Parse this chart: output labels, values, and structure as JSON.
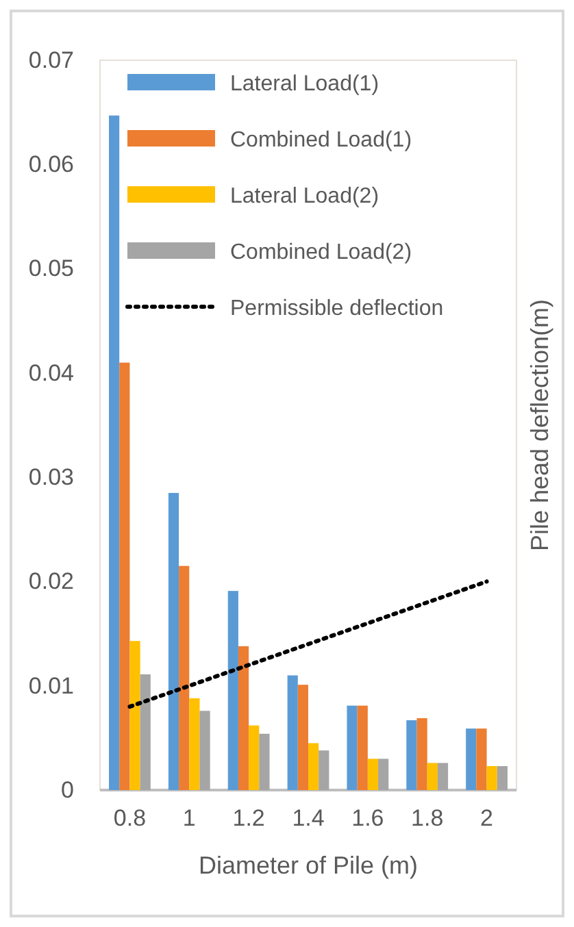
{
  "chart_data": {
    "type": "bar",
    "xlabel": "Diameter of Pile (m)",
    "ylabel": "Pile head deflection(m)",
    "categories": [
      "0.8",
      "1",
      "1.2",
      "1.4",
      "1.6",
      "1.8",
      "2"
    ],
    "series": [
      {
        "name": "Lateral Load(1)",
        "color": "#5b9bd5",
        "values": [
          0.0647,
          0.0285,
          0.0191,
          0.011,
          0.0081,
          0.0067,
          0.0059
        ]
      },
      {
        "name": "Combined Load(1)",
        "color": "#ed7d31",
        "values": [
          0.041,
          0.0215,
          0.0138,
          0.0101,
          0.0081,
          0.0069,
          0.0059
        ]
      },
      {
        "name": "Lateral Load(2)",
        "color": "#ffc000",
        "values": [
          0.0143,
          0.0088,
          0.0062,
          0.0045,
          0.003,
          0.0026,
          0.0023
        ]
      },
      {
        "name": "Combined Load(2)",
        "color": "#a5a5a5",
        "values": [
          0.0111,
          0.0076,
          0.0054,
          0.0038,
          0.003,
          0.0026,
          0.0023
        ]
      },
      {
        "name": "Permissible deflection",
        "type": "line",
        "color": "#000000",
        "line_style": "dotted",
        "values": [
          0.008,
          0.01,
          0.012,
          0.014,
          0.016,
          0.018,
          0.02
        ]
      }
    ],
    "ylim": [
      0,
      0.07
    ],
    "yticks": [
      0,
      0.01,
      0.02,
      0.03,
      0.04,
      0.05,
      0.06,
      0.07
    ],
    "grid": false,
    "legend": "top"
  }
}
